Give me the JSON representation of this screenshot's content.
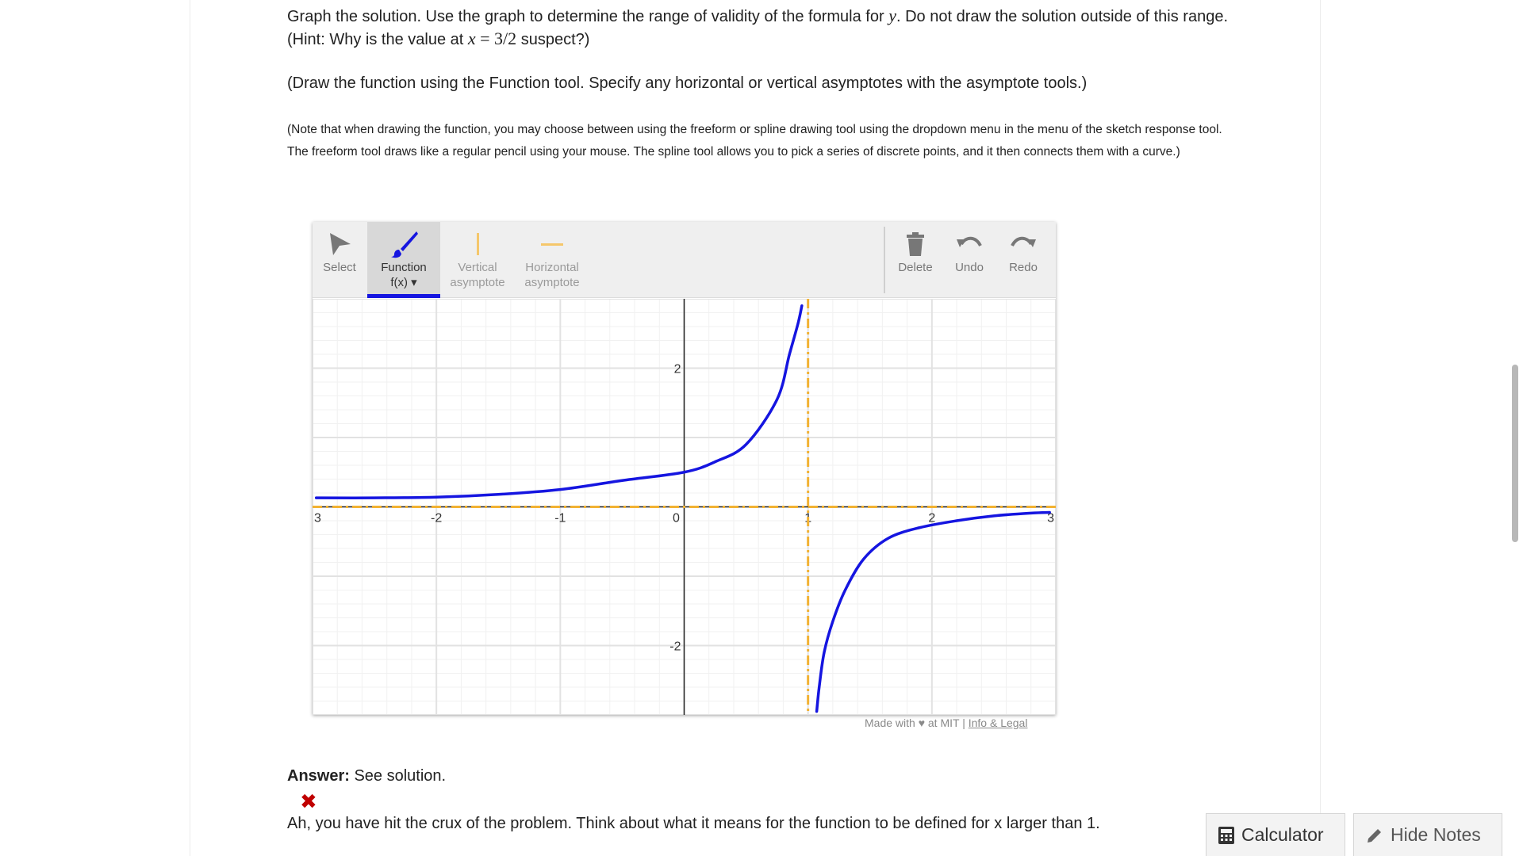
{
  "problem": {
    "p1_a": "Graph the solution. Use the graph to determine the range of validity of the formula for ",
    "p1_var": "y",
    "p1_b": ". Do not draw the solution outside of this range. (Hint: Why is the value at ",
    "p1_x": "x",
    "p1_eq": " = 3/2",
    "p1_c": " suspect?)",
    "p2": "(Draw the function using the Function tool. Specify any horizontal or vertical asymptotes with the asymptote tools.)",
    "p3": "(Note that when drawing the function, you may choose between using the freeform or spline drawing tool using the dropdown menu in the menu of the sketch response tool. The freeform tool draws like a regular pencil using your mouse. The spline tool allows you to pick a series of discrete points, and it then connects them with a curve.)"
  },
  "toolbar": {
    "select": "Select",
    "function_l1": "Function",
    "function_l2": "f(x) ▾",
    "vertical_l1": "Vertical",
    "vertical_l2": "asymptote",
    "horizontal_l1": "Horizontal",
    "horizontal_l2": "asymptote",
    "delete": "Delete",
    "undo": "Undo",
    "redo": "Redo"
  },
  "colors": {
    "function_blue": "#1515e0",
    "asymptote_orange": "#f2b233",
    "gray_icon": "#777777"
  },
  "chart_data": {
    "type": "line",
    "xlim": [
      -3,
      3
    ],
    "ylim": [
      -3,
      3
    ],
    "x_ticks": [
      "3",
      "-2",
      "-1",
      "0",
      "1",
      "2",
      "3"
    ],
    "y_ticks": [
      "2",
      "-2"
    ],
    "grid": true,
    "series": [
      {
        "x": [
          -2.97,
          -2.5,
          -2.0,
          -1.5,
          -1.0,
          -0.5,
          0.0,
          0.25,
          0.5,
          0.75,
          0.85,
          0.92,
          0.95
        ],
        "y": [
          0.13,
          0.13,
          0.14,
          0.18,
          0.25,
          0.38,
          0.5,
          0.65,
          0.9,
          1.55,
          2.2,
          2.65,
          2.9
        ]
      },
      {
        "x": [
          1.07,
          1.09,
          1.13,
          1.2,
          1.3,
          1.45,
          1.65,
          1.9,
          2.2,
          2.5,
          2.8,
          2.95
        ],
        "y": [
          -2.95,
          -2.6,
          -2.1,
          -1.65,
          -1.2,
          -0.75,
          -0.45,
          -0.3,
          -0.2,
          -0.13,
          -0.09,
          -0.08
        ]
      }
    ],
    "asymptotes": {
      "vertical_x": 1,
      "horizontal_y": 0
    }
  },
  "footer": {
    "made": "Made with ♥ at MIT | ",
    "info": "Info & Legal"
  },
  "answer": {
    "label": "Answer:",
    "text": " See solution.",
    "mark": "✖",
    "feedback": "Ah, you have hit the crux of the problem. Think about what it means for the function to be defined for x larger than 1."
  },
  "buttons": {
    "calculator": "Calculator",
    "hide_notes": "Hide Notes"
  }
}
